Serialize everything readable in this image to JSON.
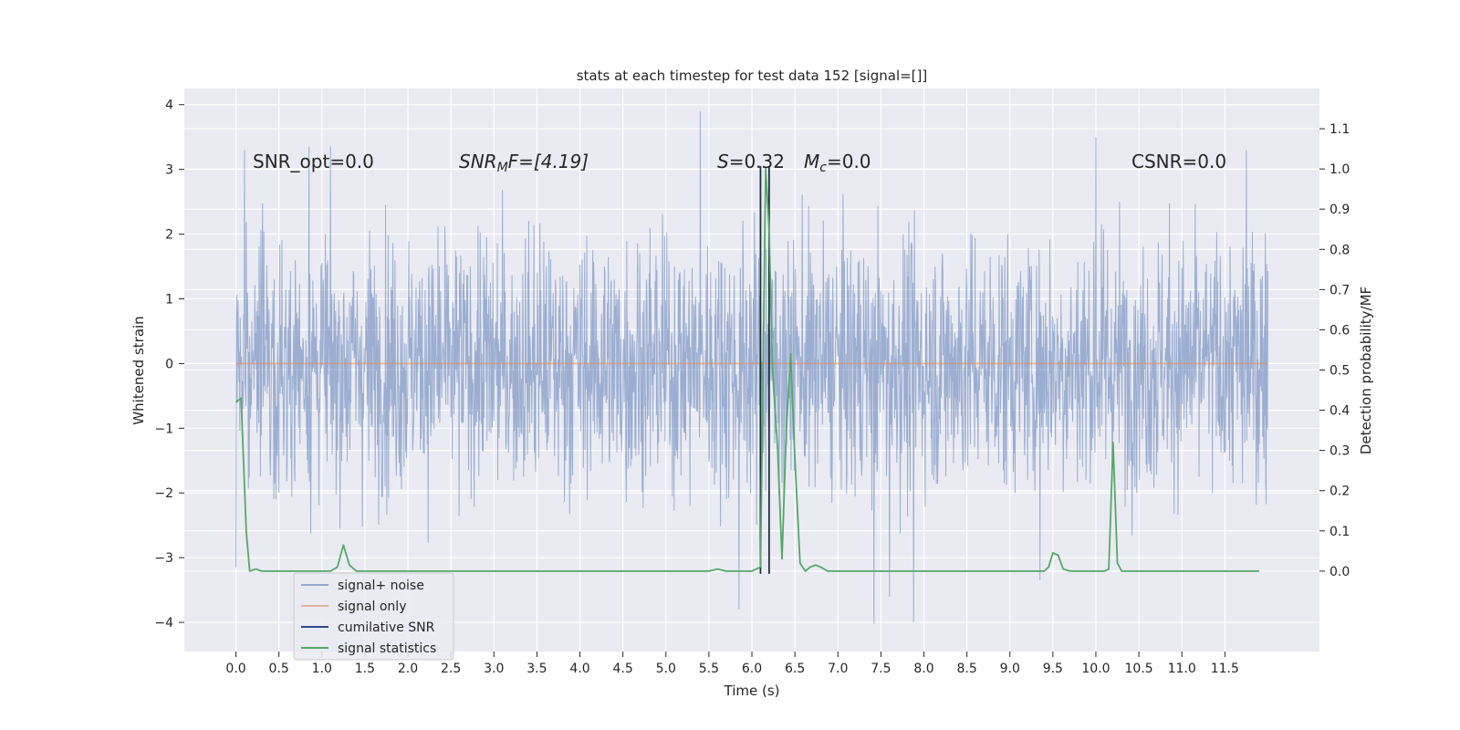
{
  "chart_data": {
    "type": "line",
    "title": "stats at each timestep for test data 152 [signal=[]]",
    "xlabel": "Time (s)",
    "ylabel": "Whitened strain",
    "y2label": "Detection probability/MF",
    "xlim": [
      -0.6,
      12.6
    ],
    "ylim": [
      -4.45,
      4.25
    ],
    "y2lim": [
      -0.2,
      1.2
    ],
    "x_ticks": [
      "0.0",
      "0.5",
      "1.0",
      "1.5",
      "2.0",
      "2.5",
      "3.0",
      "3.5",
      "4.0",
      "4.5",
      "5.0",
      "5.5",
      "6.0",
      "6.5",
      "7.0",
      "7.5",
      "8.0",
      "8.5",
      "9.0",
      "9.5",
      "10.0",
      "10.5",
      "11.0",
      "11.5"
    ],
    "y_ticks": [
      "4",
      "3",
      "2",
      "1",
      "0",
      "−1",
      "−2",
      "−3",
      "−4"
    ],
    "y2_ticks": [
      "1.1",
      "1.0",
      "0.9",
      "0.8",
      "0.7",
      "0.6",
      "0.5",
      "0.4",
      "0.3",
      "0.2",
      "0.1",
      "0.0"
    ],
    "grid": true,
    "legend_position": "lower-left",
    "annotations": {
      "snr_opt": "SNR_opt=0.0",
      "snr_mf_var": "SNR",
      "snr_mf_sub": "M",
      "snr_mf_rest": "F=[4.19]",
      "s_var": "S",
      "s_rest": "=0.32",
      "mc_var": "M",
      "mc_sub": "c",
      "mc_rest": "=0.0",
      "csnr": "CSNR=0.0"
    },
    "series": [
      {
        "name": "signal+ noise",
        "axis": "left",
        "color": "#4c72b0",
        "x_range": [
          0.0,
          12.0
        ],
        "envelope": {
          "typical_low": -1.95,
          "typical_high": 1.95,
          "min": -4.05,
          "max": 3.9
        },
        "spikes": [
          {
            "x": 5.4,
            "y": 3.9
          },
          {
            "x": 7.42,
            "y": -4.02
          },
          {
            "x": 7.88,
            "y": -4.0
          },
          {
            "x": 10.0,
            "y": 3.5
          },
          {
            "x": 5.85,
            "y": -3.8
          },
          {
            "x": 7.6,
            "y": -3.6
          },
          {
            "x": 0.1,
            "y": 3.3
          },
          {
            "x": 0.85,
            "y": 3.35
          },
          {
            "x": 11.75,
            "y": 3.3
          },
          {
            "x": 0.0,
            "y": -3.15
          },
          {
            "x": 9.35,
            "y": -3.35
          }
        ]
      },
      {
        "name": "signal only",
        "axis": "left",
        "color": "#dd8452",
        "x": [
          0.0,
          12.0
        ],
        "y": [
          0.0,
          0.0
        ]
      },
      {
        "name": "cumilative SNR",
        "axis": "left",
        "color": "#2d4a8f",
        "x": [],
        "y": []
      },
      {
        "name": "signal statistics",
        "axis": "right",
        "color": "#55a868",
        "x": [
          0.0,
          0.06,
          0.12,
          0.16,
          0.23,
          0.3,
          1.1,
          1.18,
          1.25,
          1.32,
          1.4,
          3.5,
          5.5,
          5.6,
          5.7,
          6.0,
          6.1,
          6.13,
          6.16,
          6.2,
          6.24,
          6.3,
          6.35,
          6.4,
          6.45,
          6.5,
          6.56,
          6.62,
          6.68,
          6.74,
          6.8,
          6.88,
          7.0,
          9.4,
          9.45,
          9.5,
          9.56,
          9.62,
          9.7,
          10.1,
          10.15,
          10.2,
          10.25,
          10.3,
          10.4,
          11.9
        ],
        "y": [
          0.42,
          0.43,
          0.1,
          0.0,
          0.005,
          0.0,
          0.0,
          0.01,
          0.065,
          0.015,
          0.0,
          0.0,
          0.0,
          0.005,
          0.0,
          0.0,
          0.01,
          0.5,
          1.0,
          0.85,
          0.5,
          0.3,
          0.03,
          0.35,
          0.54,
          0.28,
          0.02,
          0.0,
          0.01,
          0.015,
          0.01,
          0.0,
          0.0,
          0.0,
          0.01,
          0.045,
          0.04,
          0.005,
          0.0,
          0.0,
          0.005,
          0.32,
          0.02,
          0.0,
          0.0,
          0.0
        ]
      }
    ],
    "markers": [
      {
        "name": "vline-1",
        "x": 6.1,
        "y_top": 3.05,
        "y_bottom": -3.25,
        "color": "#1f2f3f"
      },
      {
        "name": "vline-2",
        "x": 6.2,
        "y_top": 3.05,
        "y_bottom": -3.25,
        "color": "#1f2f3f"
      }
    ]
  }
}
